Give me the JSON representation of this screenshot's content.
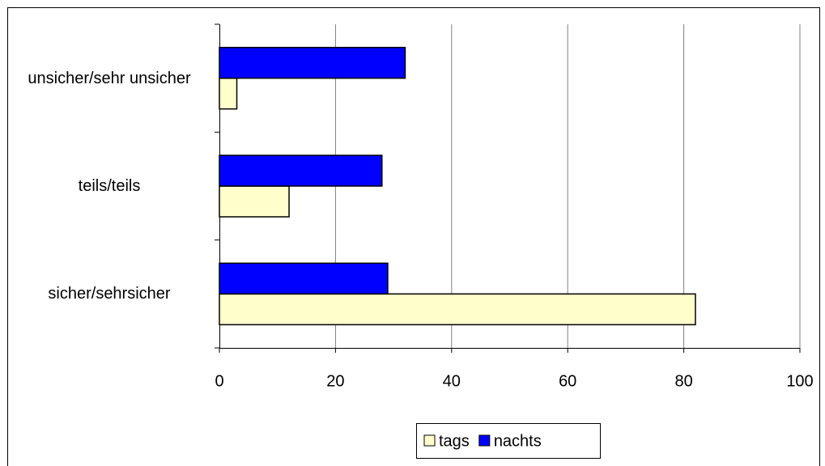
{
  "chart_data": {
    "type": "hbar",
    "categories": [
      "sicher/sehrsicher",
      "teils/teils",
      "unsicher/sehr unsicher"
    ],
    "series": [
      {
        "name": "tags",
        "color": "#ffffcc",
        "values": [
          82,
          12,
          3
        ]
      },
      {
        "name": "nachts",
        "color": "#0000ff",
        "values": [
          29,
          28,
          32
        ]
      }
    ],
    "xlim": [
      0,
      100
    ],
    "xticks": [
      0,
      20,
      40,
      60,
      80,
      100
    ],
    "grid": true,
    "legend": "bottom"
  }
}
